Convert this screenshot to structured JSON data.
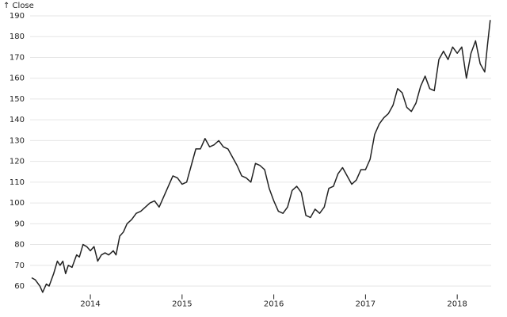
{
  "chart_data": {
    "type": "line",
    "title": "↑ Close",
    "x": [
      2013.36,
      2013.4,
      2013.45,
      2013.48,
      2013.52,
      2013.55,
      2013.6,
      2013.64,
      2013.67,
      2013.7,
      2013.73,
      2013.76,
      2013.8,
      2013.85,
      2013.88,
      2013.92,
      2013.96,
      2014.0,
      2014.04,
      2014.08,
      2014.12,
      2014.16,
      2014.2,
      2014.25,
      2014.28,
      2014.32,
      2014.36,
      2014.4,
      2014.45,
      2014.5,
      2014.55,
      2014.6,
      2014.65,
      2014.7,
      2014.75,
      2014.8,
      2014.85,
      2014.9,
      2014.95,
      2015.0,
      2015.05,
      2015.1,
      2015.15,
      2015.2,
      2015.25,
      2015.3,
      2015.35,
      2015.4,
      2015.45,
      2015.5,
      2015.55,
      2015.6,
      2015.65,
      2015.7,
      2015.75,
      2015.8,
      2015.85,
      2015.9,
      2015.95,
      2016.0,
      2016.05,
      2016.1,
      2016.15,
      2016.2,
      2016.25,
      2016.3,
      2016.35,
      2016.4,
      2016.45,
      2016.5,
      2016.55,
      2016.6,
      2016.65,
      2016.7,
      2016.75,
      2016.8,
      2016.85,
      2016.9,
      2016.95,
      2017.0,
      2017.05,
      2017.1,
      2017.15,
      2017.2,
      2017.25,
      2017.3,
      2017.35,
      2017.4,
      2017.45,
      2017.5,
      2017.55,
      2017.6,
      2017.65,
      2017.7,
      2017.75,
      2017.8,
      2017.85,
      2017.9,
      2017.95,
      2018.0,
      2018.05,
      2018.1,
      2018.15,
      2018.2,
      2018.25,
      2018.3,
      2018.33,
      2018.36
    ],
    "series": [
      {
        "color": "#222222",
        "values": [
          64,
          63,
          60,
          57,
          61,
          60,
          66,
          72,
          70,
          72,
          66,
          70,
          69,
          75,
          74,
          80,
          79,
          77,
          79,
          72,
          75,
          76,
          75,
          77,
          75,
          84,
          86,
          90,
          92,
          95,
          96,
          98,
          100,
          101,
          98,
          103,
          108,
          113,
          112,
          109,
          110,
          118,
          126,
          126,
          131,
          127,
          128,
          130,
          127,
          126,
          122,
          118,
          113,
          112,
          110,
          119,
          118,
          116,
          107,
          101,
          96,
          95,
          98,
          106,
          108,
          105,
          94,
          93,
          97,
          95,
          98,
          107,
          108,
          114,
          117,
          113,
          109,
          111,
          116,
          116,
          121,
          133,
          138,
          141,
          143,
          147,
          155,
          153,
          146,
          144,
          148,
          156,
          161,
          155,
          154,
          169,
          173,
          169,
          175,
          172,
          175,
          160,
          172,
          178,
          167,
          163,
          176,
          188
        ]
      }
    ],
    "xlim": [
      2013.343,
      2018.37
    ],
    "xticks": [
      2014,
      2015,
      2016,
      2017,
      2018
    ],
    "ylim": [
      56,
      190
    ],
    "yticks": [
      60,
      70,
      80,
      90,
      100,
      110,
      120,
      130,
      140,
      150,
      160,
      170,
      180,
      190
    ],
    "grid": true
  }
}
